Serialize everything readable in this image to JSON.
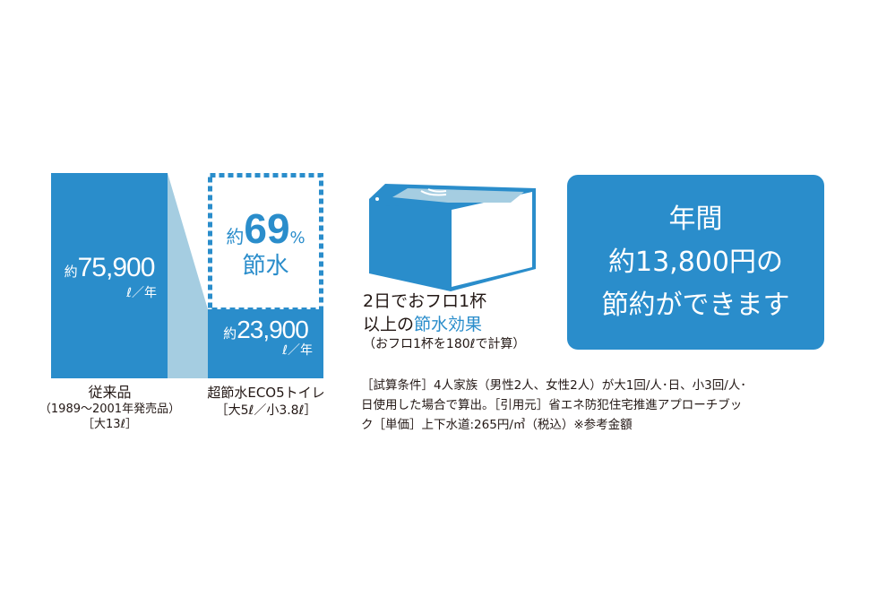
{
  "colors": {
    "accent": "#2a8dcb",
    "light": "#a5cde1",
    "text": "#231815"
  },
  "conventional": {
    "prefix": "約",
    "value": "75,900",
    "unit": "ℓ／年",
    "name": "従来品",
    "period": "（1989〜2001年発売品）",
    "spec": "［大13ℓ］"
  },
  "new_toilet": {
    "prefix": "約",
    "value": "23,900",
    "unit": "ℓ／年",
    "name": "超節水ECO5トイレ",
    "spec": "［大5ℓ／小3.8ℓ］"
  },
  "saving": {
    "prefix": "約",
    "percent": "69",
    "percent_sign": "%",
    "label": "節水"
  },
  "bath": {
    "icon": "bathtub-icon",
    "line1": "2日でおフロ1杯",
    "line2_prefix": "以上の",
    "line2_accent": "節水効果",
    "note": "（おフロ1杯を180ℓで計算）"
  },
  "savings_box": {
    "line1": "年間",
    "line2": "約13,800円の",
    "line3": "節約ができます"
  },
  "footnote": [
    "［試算条件］4人家族（男性2人、女性2人）が大1回/人･日、小3回/人･",
    "日使用した場合で算出。［引用元］省エネ防犯住宅推進アプローチブッ",
    "ク［単価］上下水道:265円/㎥（税込）※参考金額"
  ]
}
